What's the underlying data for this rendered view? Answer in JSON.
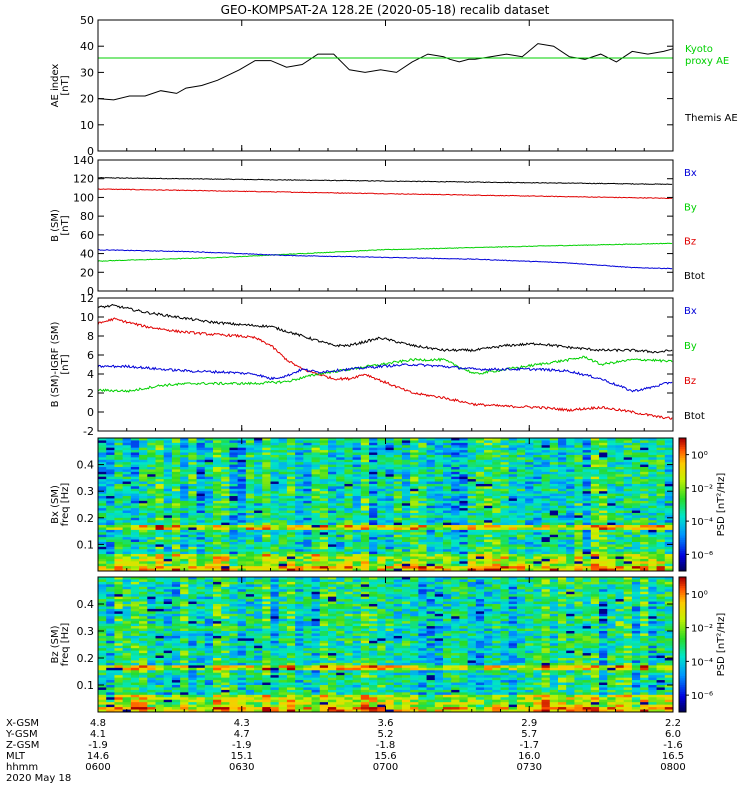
{
  "title": "GEO-KOMPSAT-2A 128.2E (2020-05-18) recalib dataset",
  "colors": {
    "black": "#000000",
    "red": "#e00000",
    "green": "#00d000",
    "blue": "#0000d8"
  },
  "chart_data": [
    {
      "id": "ae",
      "type": "line",
      "ylabel_lines": [
        "AE index",
        "[nT]"
      ],
      "ylim": [
        0,
        50
      ],
      "yticks": [
        0,
        10,
        20,
        30,
        40,
        50
      ],
      "legend": [
        {
          "label": "Kyoto",
          "color": "#00d000"
        },
        {
          "label": "proxy AE",
          "color": "#00d000"
        },
        {
          "label": "Themis AE",
          "color": "#000000"
        }
      ],
      "series": [
        {
          "color": "#000000",
          "x_minutes": [
            0,
            5,
            10,
            15,
            20,
            25,
            28,
            33,
            38,
            45,
            50,
            55,
            60,
            65,
            70,
            75,
            80,
            85,
            90,
            95,
            100,
            105,
            110,
            112,
            115,
            118,
            120,
            125,
            130,
            135,
            140,
            145,
            150,
            155,
            160,
            165,
            170,
            175,
            180,
            183
          ],
          "values": [
            20,
            19.5,
            21,
            21,
            23,
            22,
            24,
            25,
            27,
            31,
            34.5,
            34.5,
            32,
            33,
            37,
            37,
            31,
            30,
            31,
            30,
            34,
            37,
            36,
            35,
            34,
            35,
            35,
            36,
            37,
            36,
            41,
            40,
            36,
            35,
            37,
            34,
            38,
            37,
            38,
            39
          ]
        },
        {
          "color": "#00d000",
          "x_minutes": [
            0,
            183
          ],
          "values": [
            35.5,
            35.5
          ]
        }
      ]
    },
    {
      "id": "bsm",
      "type": "line",
      "ylabel_lines": [
        "B (SM)",
        "[nT]"
      ],
      "ylim": [
        0,
        140
      ],
      "yticks": [
        0,
        20,
        40,
        60,
        80,
        100,
        120,
        140
      ],
      "legend": [
        {
          "label": "Bx",
          "color": "#0000d8"
        },
        {
          "label": "By",
          "color": "#00d000"
        },
        {
          "label": "Bz",
          "color": "#e00000"
        },
        {
          "label": "Btot",
          "color": "#000000"
        }
      ],
      "series": [
        {
          "color": "#000000",
          "x_minutes": [
            0,
            183
          ],
          "values": [
            121,
            114
          ]
        },
        {
          "color": "#e00000",
          "x_minutes": [
            0,
            183
          ],
          "values": [
            109,
            99
          ]
        },
        {
          "color": "#00d000",
          "x_minutes": [
            0,
            40,
            90,
            140,
            183
          ],
          "values": [
            32,
            36,
            44,
            48,
            51
          ]
        },
        {
          "color": "#0000d8",
          "x_minutes": [
            0,
            30,
            60,
            90,
            120,
            150,
            170,
            183
          ],
          "values": [
            44,
            42,
            38,
            36,
            34,
            30,
            25,
            24
          ]
        }
      ]
    },
    {
      "id": "dbsm",
      "type": "line",
      "ylabel_lines": [
        "B (SM)-IGRF (SM)",
        "[nT]"
      ],
      "ylim": [
        -2,
        12
      ],
      "yticks": [
        -2,
        0,
        2,
        4,
        6,
        8,
        10,
        12
      ],
      "legend": [
        {
          "label": "Bx",
          "color": "#0000d8"
        },
        {
          "label": "By",
          "color": "#00d000"
        },
        {
          "label": "Bz",
          "color": "#e00000"
        },
        {
          "label": "Btot",
          "color": "#000000"
        }
      ],
      "series": [
        {
          "color": "#000000",
          "x_minutes": [
            0,
            5,
            15,
            25,
            35,
            45,
            55,
            60,
            65,
            75,
            80,
            90,
            100,
            110,
            120,
            130,
            140,
            150,
            160,
            170,
            178,
            183
          ],
          "values": [
            11,
            11.2,
            10.5,
            10,
            9.5,
            9.2,
            9,
            8.5,
            8,
            7,
            7,
            7.8,
            7,
            6.5,
            6.5,
            7,
            7.2,
            6.8,
            6.5,
            6.5,
            6.3,
            6.5
          ]
        },
        {
          "color": "#e00000",
          "x_minutes": [
            0,
            5,
            15,
            25,
            35,
            45,
            50,
            55,
            60,
            65,
            70,
            75,
            80,
            85,
            90,
            100,
            110,
            120,
            130,
            140,
            150,
            160,
            170,
            178,
            183
          ],
          "values": [
            9.3,
            9.8,
            9,
            8.5,
            8.2,
            8,
            7.8,
            7,
            5.5,
            4.5,
            4,
            3.5,
            3.5,
            4,
            3.3,
            2,
            1.5,
            0.8,
            0.6,
            0.5,
            0.2,
            0.5,
            0,
            -0.5,
            -0.7
          ]
        },
        {
          "color": "#00d000",
          "x_minutes": [
            0,
            10,
            20,
            30,
            40,
            50,
            60,
            70,
            80,
            90,
            100,
            110,
            120,
            130,
            140,
            150,
            155,
            160,
            170,
            175,
            183
          ],
          "values": [
            2.3,
            2.2,
            2.8,
            3,
            3,
            3,
            3.2,
            4,
            4.5,
            5,
            5.5,
            5.5,
            4,
            4.5,
            5,
            5.5,
            5.8,
            5,
            5.5,
            5.5,
            5.3
          ]
        },
        {
          "color": "#0000d8",
          "x_minutes": [
            0,
            10,
            20,
            30,
            40,
            50,
            55,
            60,
            65,
            70,
            80,
            90,
            100,
            110,
            120,
            130,
            140,
            150,
            160,
            170,
            175,
            183
          ],
          "values": [
            4.8,
            4.8,
            4.5,
            4.3,
            4.2,
            4,
            3.5,
            3.8,
            4.5,
            4.2,
            4.5,
            4.8,
            5,
            4.8,
            4.5,
            4.5,
            4.5,
            4.3,
            3.5,
            2.2,
            2.5,
            3.2
          ]
        }
      ]
    },
    {
      "id": "bx_spec",
      "type": "heatmap",
      "ylabel_lines": [
        "Bx (SM)",
        "freq [Hz]"
      ],
      "ylim": [
        0,
        0.5
      ],
      "yticks": [
        0.1,
        0.2,
        0.3,
        0.4
      ],
      "colorbar_label": "PSD [nT²/Hz]",
      "colorbar_ticks": [
        "10⁰",
        "10⁻²",
        "10⁻⁴",
        "10⁻⁶"
      ],
      "colorbar_log_range": [
        -7,
        1
      ],
      "band_hz": 0.165
    },
    {
      "id": "bz_spec",
      "type": "heatmap",
      "ylabel_lines": [
        "Bz (SM)",
        "freq [Hz]"
      ],
      "ylim": [
        0,
        0.5
      ],
      "yticks": [
        0.1,
        0.2,
        0.3,
        0.4
      ],
      "colorbar_label": "PSD [nT²/Hz]",
      "colorbar_ticks": [
        "10⁰",
        "10⁻²",
        "10⁻⁴",
        "10⁻⁶"
      ],
      "colorbar_log_range": [
        -7,
        1
      ],
      "band_hz": 0.165
    }
  ],
  "x_axis": {
    "row_labels": [
      "X-GSM",
      "Y-GSM",
      "Z-GSM",
      "MLT",
      "hhmm"
    ],
    "tick_minutes": [
      0,
      45.75,
      91.5,
      137.25,
      183
    ],
    "columns": [
      [
        "4.8",
        "4.1",
        "-1.9",
        "14.6",
        "0600"
      ],
      [
        "4.3",
        "4.7",
        "-1.9",
        "15.1",
        "0630"
      ],
      [
        "3.6",
        "5.2",
        "-1.8",
        "15.6",
        "0700"
      ],
      [
        "2.9",
        "5.7",
        "-1.7",
        "16.0",
        "0730"
      ],
      [
        "2.2",
        "6.0",
        "-1.6",
        "16.5",
        "0800"
      ]
    ],
    "date": "2020 May 18"
  }
}
